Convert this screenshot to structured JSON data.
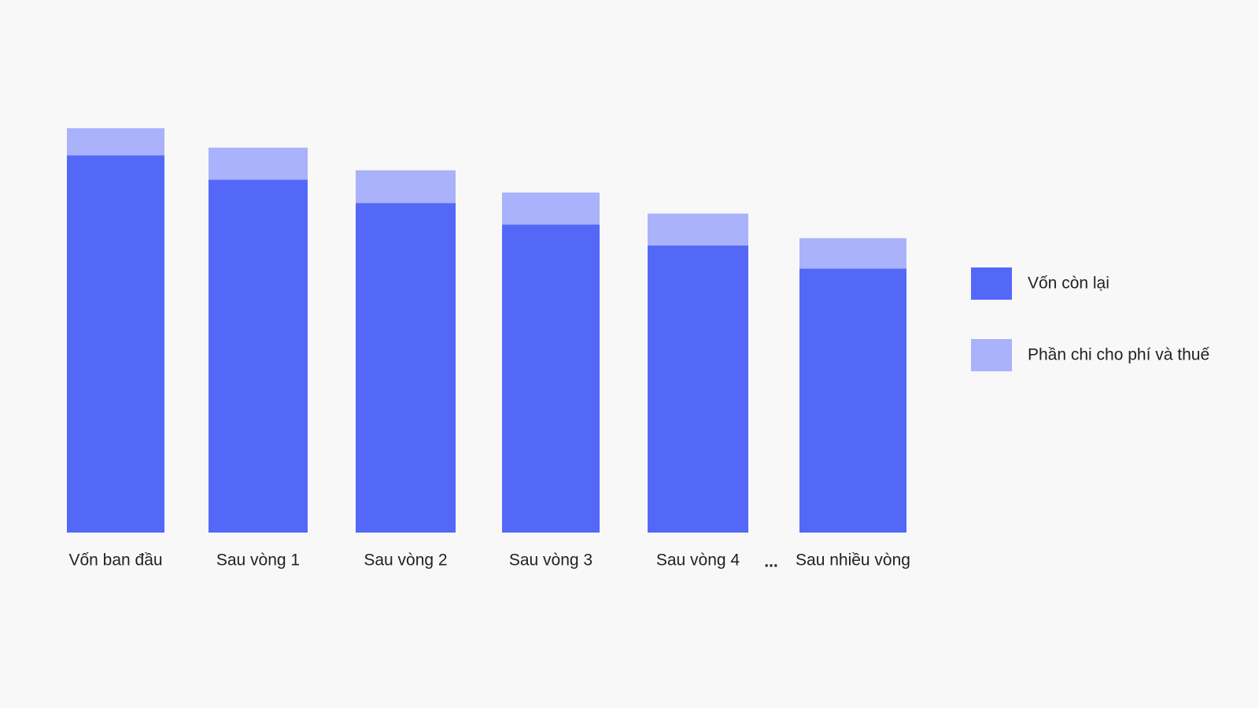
{
  "chart_data": {
    "type": "stacked_bar",
    "categories": [
      "Vốn ban đầu",
      "Sau vòng 1",
      "Sau vòng 2",
      "Sau vòng 3",
      "Sau vòng 4",
      "Sau nhiều vòng"
    ],
    "series": [
      {
        "name": "Vốn còn lại",
        "color": "#5468f8",
        "values": [
          93.3,
          87.3,
          81.5,
          76.2,
          71.0,
          65.3
        ]
      },
      {
        "name": "Phần chi cho phí và thuế",
        "color": "#aab2fb",
        "values": [
          6.7,
          7.9,
          8.1,
          7.9,
          7.9,
          7.5
        ]
      }
    ],
    "annotation": "...",
    "ylim": [
      0,
      100
    ],
    "legend": "right"
  }
}
